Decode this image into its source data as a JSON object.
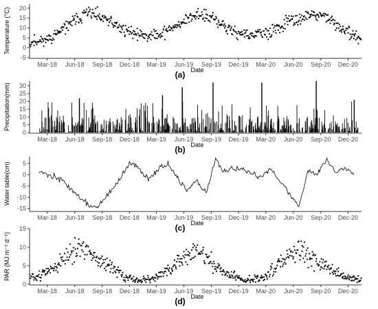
{
  "figure": {
    "x_tick_labels": [
      "Mar-18",
      "Jun-18",
      "Sep-18",
      "Dec-18",
      "Mar-19",
      "Jun-19",
      "Sep-19",
      "Dec-19",
      "Mar-20",
      "Jun-20",
      "Sep-20",
      "Dec-20"
    ],
    "xlabel": "Date",
    "colors": {
      "marks": "#000000",
      "axis": "#333333"
    }
  },
  "chart_data": [
    {
      "type": "scatter",
      "panel_label": "(a)",
      "ylabel": "Temperature (°C)",
      "xlabel": "Date",
      "ylim": [
        -5,
        22
      ],
      "yticks": [
        -5,
        0,
        5,
        10,
        15,
        20
      ],
      "x_range": [
        "2018-01-01",
        "2021-01-15"
      ],
      "grid": false,
      "series_profile": {
        "x": [
          "2018-01",
          "2018-03",
          "2018-05",
          "2018-07",
          "2018-09",
          "2018-11",
          "2019-01",
          "2019-03",
          "2019-05",
          "2019-07",
          "2019-09",
          "2019-11",
          "2020-01",
          "2020-03",
          "2020-05",
          "2020-07",
          "2020-09",
          "2020-11",
          "2021-01"
        ],
        "y": [
          3,
          5,
          12,
          18,
          14,
          9,
          6,
          7,
          12,
          17,
          14,
          8,
          6,
          8,
          13,
          16,
          16,
          9,
          4
        ]
      }
    },
    {
      "type": "bar",
      "panel_label": "(b)",
      "ylabel": "Precipitation(mm)",
      "xlabel": "Date",
      "ylim": [
        0,
        33
      ],
      "yticks": [
        0,
        5,
        10,
        15,
        20,
        25,
        30
      ],
      "x_range": [
        "2018-01-01",
        "2021-01-15"
      ],
      "peaks": [
        {
          "x": "2018-06-15",
          "y": 22
        },
        {
          "x": "2019-03-20",
          "y": 24
        },
        {
          "x": "2019-05-25",
          "y": 29
        },
        {
          "x": "2019-09-05",
          "y": 32
        },
        {
          "x": "2020-02-15",
          "y": 32
        },
        {
          "x": "2020-08-15",
          "y": 33
        },
        {
          "x": "2020-12-20",
          "y": 21
        }
      ]
    },
    {
      "type": "line",
      "panel_label": "(c)",
      "ylabel": "Water table(cm)",
      "xlabel": "Date",
      "ylim": [
        -16,
        8
      ],
      "yticks": [
        -15,
        -10,
        -5,
        0,
        5
      ],
      "x_range": [
        "2018-01-01",
        "2021-01-15"
      ],
      "series_profile": {
        "x": [
          "2018-02-01",
          "2018-03-01",
          "2018-04-15",
          "2018-06-01",
          "2018-07-20",
          "2018-08-20",
          "2018-10-01",
          "2018-11-01",
          "2018-12-01",
          "2019-01-01",
          "2019-02-01",
          "2019-03-01",
          "2019-04-10",
          "2019-05-15",
          "2019-06-10",
          "2019-07-15",
          "2019-08-15",
          "2019-09-15",
          "2019-10-10",
          "2019-11-15",
          "2019-12-15",
          "2020-01-15",
          "2020-02-15",
          "2020-03-15",
          "2020-04-15",
          "2020-05-15",
          "2020-06-20",
          "2020-07-20",
          "2020-08-20",
          "2020-09-20",
          "2020-10-20",
          "2020-11-20",
          "2020-12-20"
        ],
        "y": [
          2,
          0,
          -2,
          -8,
          -14,
          -14,
          -7,
          -2,
          5,
          3,
          -2,
          2,
          5,
          -3,
          -7,
          -3,
          -8,
          7,
          1,
          3,
          2,
          0,
          -1,
          3,
          -2,
          -8,
          -14,
          2,
          0,
          7,
          1,
          3,
          1
        ]
      }
    },
    {
      "type": "scatter",
      "panel_label": "(d)",
      "ylabel": "PAR (MJ m⁻² d⁻¹)",
      "xlabel": "Date",
      "ylim": [
        0,
        15
      ],
      "yticks": [
        0,
        5,
        10,
        15
      ],
      "x_range": [
        "2018-01-01",
        "2021-01-15"
      ],
      "grid": false,
      "series_profile": {
        "x": [
          "2018-01",
          "2018-03",
          "2018-05",
          "2018-06",
          "2018-07",
          "2018-09",
          "2018-11",
          "2018-12",
          "2019-02",
          "2019-04",
          "2019-06",
          "2019-07",
          "2019-09",
          "2019-11",
          "2019-12",
          "2020-02",
          "2020-04",
          "2020-06",
          "2020-07",
          "2020-09",
          "2020-11",
          "2021-01"
        ],
        "y": [
          2,
          4,
          8,
          10,
          9,
          5,
          2,
          1,
          1.5,
          4,
          8,
          9,
          5,
          2,
          1,
          1.5,
          5,
          9,
          8,
          5,
          2,
          1
        ]
      }
    }
  ]
}
